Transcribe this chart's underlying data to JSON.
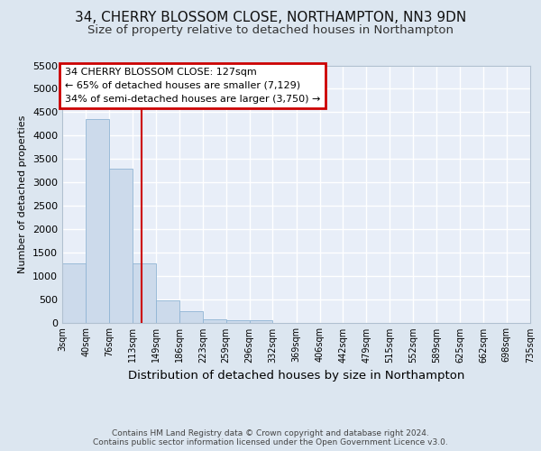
{
  "title1": "34, CHERRY BLOSSOM CLOSE, NORTHAMPTON, NN3 9DN",
  "title2": "Size of property relative to detached houses in Northampton",
  "xlabel": "Distribution of detached houses by size in Northampton",
  "ylabel": "Number of detached properties",
  "footer": "Contains HM Land Registry data © Crown copyright and database right 2024.\nContains public sector information licensed under the Open Government Licence v3.0.",
  "bin_edges": [
    3,
    40,
    76,
    113,
    149,
    186,
    223,
    259,
    296,
    332,
    369,
    406,
    442,
    479,
    515,
    552,
    589,
    625,
    662,
    698,
    735
  ],
  "bar_heights": [
    1270,
    4350,
    3300,
    1270,
    480,
    240,
    75,
    55,
    55,
    0,
    0,
    0,
    0,
    0,
    0,
    0,
    0,
    0,
    0,
    0
  ],
  "bar_color": "#ccdaeb",
  "bar_edge_color": "#8fb4d4",
  "property_size": 127,
  "vline_color": "#cc0000",
  "annotation_line1": "34 CHERRY BLOSSOM CLOSE: 127sqm",
  "annotation_line2": "← 65% of detached houses are smaller (7,129)",
  "annotation_line3": "34% of semi-detached houses are larger (3,750) →",
  "annotation_box_color": "#cc0000",
  "annotation_bg_color": "#ffffff",
  "ylim": [
    0,
    5500
  ],
  "yticks": [
    0,
    500,
    1000,
    1500,
    2000,
    2500,
    3000,
    3500,
    4000,
    4500,
    5000,
    5500
  ],
  "background_color": "#dce6f0",
  "plot_bg_color": "#e8eef8",
  "grid_color": "#ffffff",
  "title1_fontsize": 11,
  "title2_fontsize": 9.5,
  "title1_weight": "normal"
}
